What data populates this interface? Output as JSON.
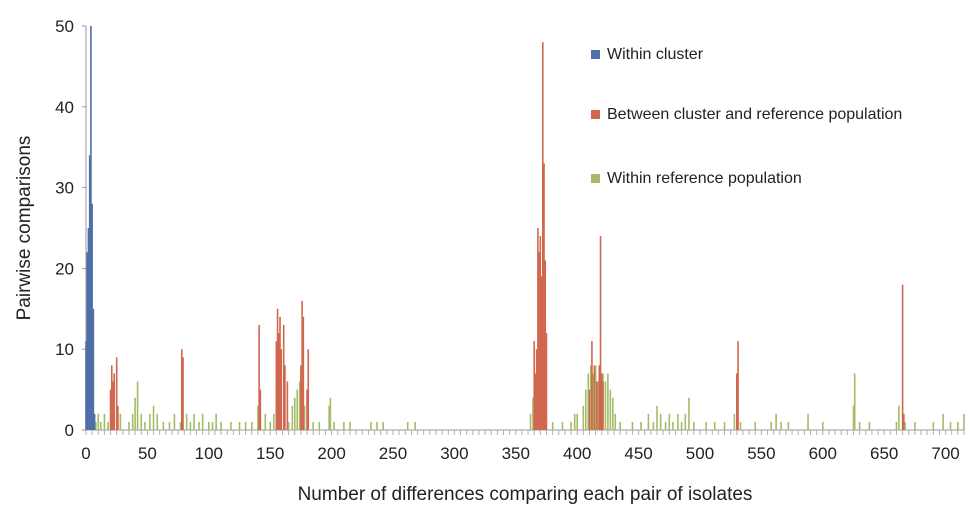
{
  "chart_data": {
    "type": "bar",
    "title": "",
    "xlabel": "Number of differences comparing each pair of isolates",
    "ylabel": "Pairwise comparisons",
    "xlim": [
      0,
      715
    ],
    "ylim": [
      0,
      50
    ],
    "x_ticks": [
      0,
      50,
      100,
      150,
      200,
      250,
      300,
      350,
      400,
      450,
      500,
      550,
      600,
      650,
      700
    ],
    "y_ticks": [
      0,
      10,
      20,
      30,
      40,
      50
    ],
    "grid": false,
    "legend_position": "top-right",
    "series": [
      {
        "name": "Within cluster",
        "color": "#4f6fa8",
        "points": [
          [
            0,
            11
          ],
          [
            1,
            22
          ],
          [
            2,
            25
          ],
          [
            3,
            34
          ],
          [
            4,
            50
          ],
          [
            5,
            28
          ],
          [
            6,
            15
          ],
          [
            7,
            2
          ]
        ]
      },
      {
        "name": "Between cluster and reference population",
        "color": "#d1674f",
        "points": [
          [
            20,
            5
          ],
          [
            21,
            8
          ],
          [
            22,
            6
          ],
          [
            23,
            7
          ],
          [
            25,
            9
          ],
          [
            26,
            3
          ],
          [
            78,
            10
          ],
          [
            79,
            9
          ],
          [
            141,
            13
          ],
          [
            142,
            5
          ],
          [
            155,
            11
          ],
          [
            156,
            15
          ],
          [
            157,
            12
          ],
          [
            158,
            14
          ],
          [
            159,
            10
          ],
          [
            161,
            13
          ],
          [
            162,
            8
          ],
          [
            164,
            6
          ],
          [
            175,
            8
          ],
          [
            176,
            16
          ],
          [
            177,
            14
          ],
          [
            180,
            5
          ],
          [
            181,
            10
          ],
          [
            365,
            11
          ],
          [
            366,
            7
          ],
          [
            367,
            10
          ],
          [
            368,
            25
          ],
          [
            369,
            22
          ],
          [
            370,
            24
          ],
          [
            371,
            19
          ],
          [
            372,
            48
          ],
          [
            373,
            33
          ],
          [
            374,
            21
          ],
          [
            375,
            12
          ],
          [
            410,
            5
          ],
          [
            412,
            11
          ],
          [
            414,
            8
          ],
          [
            416,
            6
          ],
          [
            418,
            8
          ],
          [
            419,
            24
          ],
          [
            420,
            7
          ],
          [
            421,
            6
          ],
          [
            530,
            7
          ],
          [
            531,
            11
          ],
          [
            665,
            18
          ],
          [
            666,
            2
          ]
        ]
      },
      {
        "name": "Within reference population",
        "color": "#a4bc68",
        "points": [
          [
            5,
            3
          ],
          [
            8,
            1
          ],
          [
            10,
            2
          ],
          [
            12,
            1
          ],
          [
            15,
            2
          ],
          [
            18,
            1
          ],
          [
            28,
            2
          ],
          [
            35,
            1
          ],
          [
            38,
            2
          ],
          [
            40,
            4
          ],
          [
            42,
            6
          ],
          [
            45,
            2
          ],
          [
            48,
            1
          ],
          [
            52,
            2
          ],
          [
            55,
            3
          ],
          [
            58,
            2
          ],
          [
            63,
            1
          ],
          [
            68,
            1
          ],
          [
            72,
            2
          ],
          [
            77,
            1
          ],
          [
            82,
            2
          ],
          [
            85,
            1
          ],
          [
            88,
            2
          ],
          [
            92,
            1
          ],
          [
            95,
            2
          ],
          [
            100,
            1
          ],
          [
            103,
            1
          ],
          [
            106,
            2
          ],
          [
            110,
            1
          ],
          [
            118,
            1
          ],
          [
            125,
            1
          ],
          [
            130,
            1
          ],
          [
            135,
            1
          ],
          [
            140,
            3
          ],
          [
            146,
            2
          ],
          [
            150,
            1
          ],
          [
            153,
            2
          ],
          [
            165,
            1
          ],
          [
            168,
            3
          ],
          [
            170,
            4
          ],
          [
            172,
            5
          ],
          [
            174,
            6
          ],
          [
            178,
            3
          ],
          [
            185,
            1
          ],
          [
            190,
            1
          ],
          [
            198,
            3
          ],
          [
            199,
            4
          ],
          [
            202,
            1
          ],
          [
            210,
            1
          ],
          [
            215,
            1
          ],
          [
            232,
            1
          ],
          [
            237,
            1
          ],
          [
            242,
            1
          ],
          [
            262,
            1
          ],
          [
            268,
            1
          ],
          [
            362,
            2
          ],
          [
            364,
            4
          ],
          [
            366,
            2
          ],
          [
            368,
            3
          ],
          [
            370,
            2
          ],
          [
            372,
            3
          ],
          [
            380,
            1
          ],
          [
            388,
            1
          ],
          [
            395,
            1
          ],
          [
            398,
            2
          ],
          [
            400,
            2
          ],
          [
            405,
            3
          ],
          [
            407,
            5
          ],
          [
            409,
            7
          ],
          [
            411,
            8
          ],
          [
            413,
            7
          ],
          [
            415,
            8
          ],
          [
            417,
            6
          ],
          [
            419,
            5
          ],
          [
            421,
            7
          ],
          [
            423,
            6
          ],
          [
            425,
            7
          ],
          [
            427,
            5
          ],
          [
            429,
            4
          ],
          [
            431,
            2
          ],
          [
            435,
            1
          ],
          [
            445,
            1
          ],
          [
            452,
            1
          ],
          [
            458,
            2
          ],
          [
            462,
            1
          ],
          [
            465,
            3
          ],
          [
            468,
            2
          ],
          [
            472,
            1
          ],
          [
            475,
            2
          ],
          [
            478,
            1
          ],
          [
            482,
            2
          ],
          [
            485,
            1
          ],
          [
            488,
            2
          ],
          [
            491,
            4
          ],
          [
            495,
            1
          ],
          [
            505,
            1
          ],
          [
            512,
            1
          ],
          [
            520,
            1
          ],
          [
            528,
            2
          ],
          [
            533,
            1
          ],
          [
            545,
            1
          ],
          [
            558,
            1
          ],
          [
            562,
            2
          ],
          [
            566,
            1
          ],
          [
            572,
            1
          ],
          [
            588,
            2
          ],
          [
            600,
            1
          ],
          [
            625,
            3
          ],
          [
            626,
            7
          ],
          [
            630,
            1
          ],
          [
            638,
            1
          ],
          [
            660,
            1
          ],
          [
            662,
            3
          ],
          [
            667,
            1
          ],
          [
            675,
            1
          ],
          [
            690,
            1
          ],
          [
            698,
            2
          ],
          [
            704,
            1
          ],
          [
            710,
            1
          ],
          [
            715,
            2
          ]
        ]
      }
    ]
  }
}
